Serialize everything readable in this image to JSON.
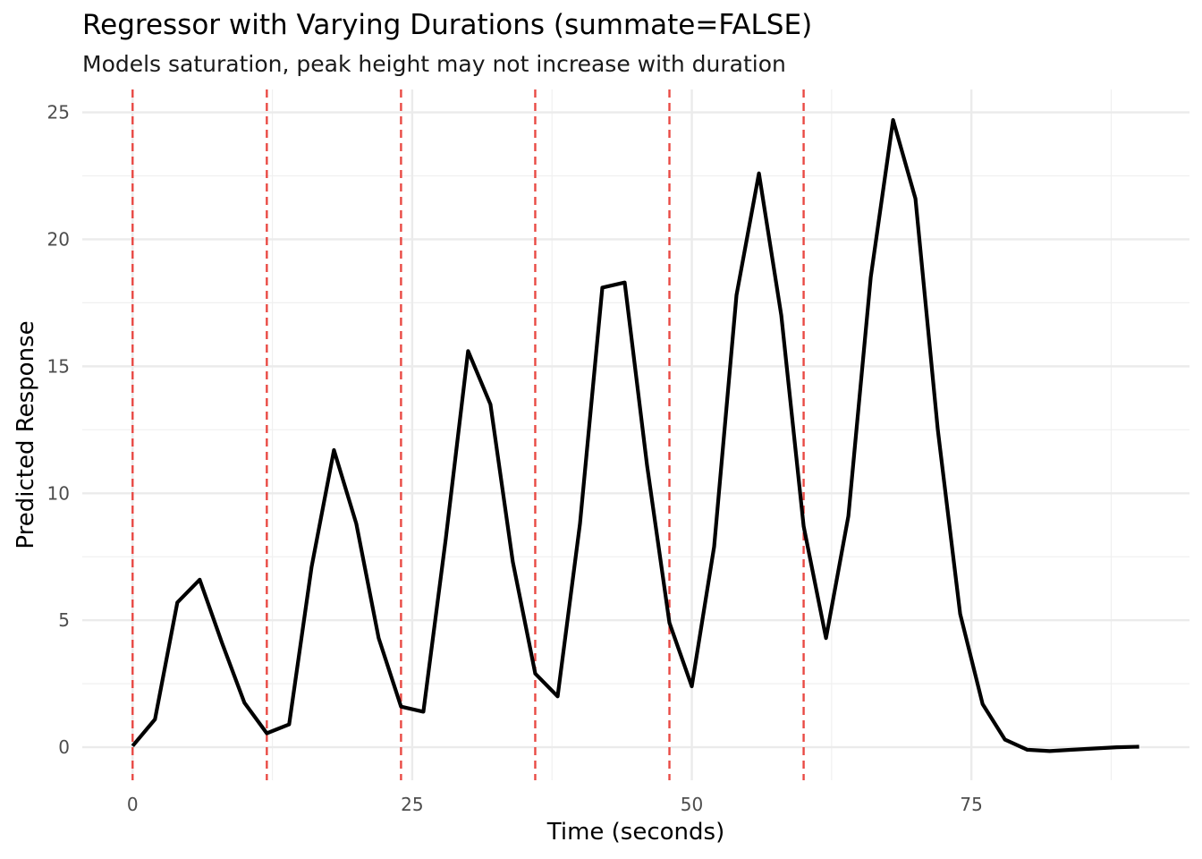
{
  "chart_data": {
    "type": "line",
    "title": "Regressor with Varying Durations (summate=FALSE)",
    "subtitle": "Models saturation, peak height may not increase with duration",
    "xlabel": "Time (seconds)",
    "ylabel": "Predicted Response",
    "xlim": [
      -4.5,
      94.5
    ],
    "ylim": [
      -1.3,
      25.9
    ],
    "x_ticks": [
      0,
      25,
      50,
      75
    ],
    "y_ticks": [
      0,
      5,
      10,
      15,
      20,
      25
    ],
    "grid": true,
    "line_color": "#000000",
    "onset_color": "#e8413b",
    "onsets": [
      0,
      12,
      24,
      36,
      48,
      60
    ],
    "series": [
      {
        "x": [
          0,
          2,
          4,
          6,
          8,
          10,
          12,
          14,
          16,
          18,
          20,
          22,
          24,
          26,
          28,
          30,
          32,
          34,
          36,
          38,
          40,
          42,
          44,
          46,
          48,
          50,
          52,
          54,
          56,
          58,
          60,
          62,
          64,
          66,
          68,
          70,
          72,
          74,
          76,
          78,
          80,
          82,
          84,
          86,
          88,
          90
        ],
        "values": [
          0.05,
          1.1,
          5.7,
          6.6,
          4.1,
          1.75,
          0.55,
          0.9,
          7.1,
          11.7,
          8.8,
          4.3,
          1.6,
          1.4,
          8.2,
          15.6,
          13.5,
          7.3,
          2.9,
          2.0,
          8.8,
          18.1,
          18.3,
          11.1,
          4.9,
          2.4,
          7.9,
          17.8,
          22.6,
          17.0,
          8.7,
          4.3,
          9.1,
          18.5,
          24.7,
          21.6,
          12.5,
          5.25,
          1.7,
          0.3,
          -0.1,
          -0.15,
          -0.1,
          -0.05,
          0.0,
          0.02
        ]
      }
    ]
  }
}
